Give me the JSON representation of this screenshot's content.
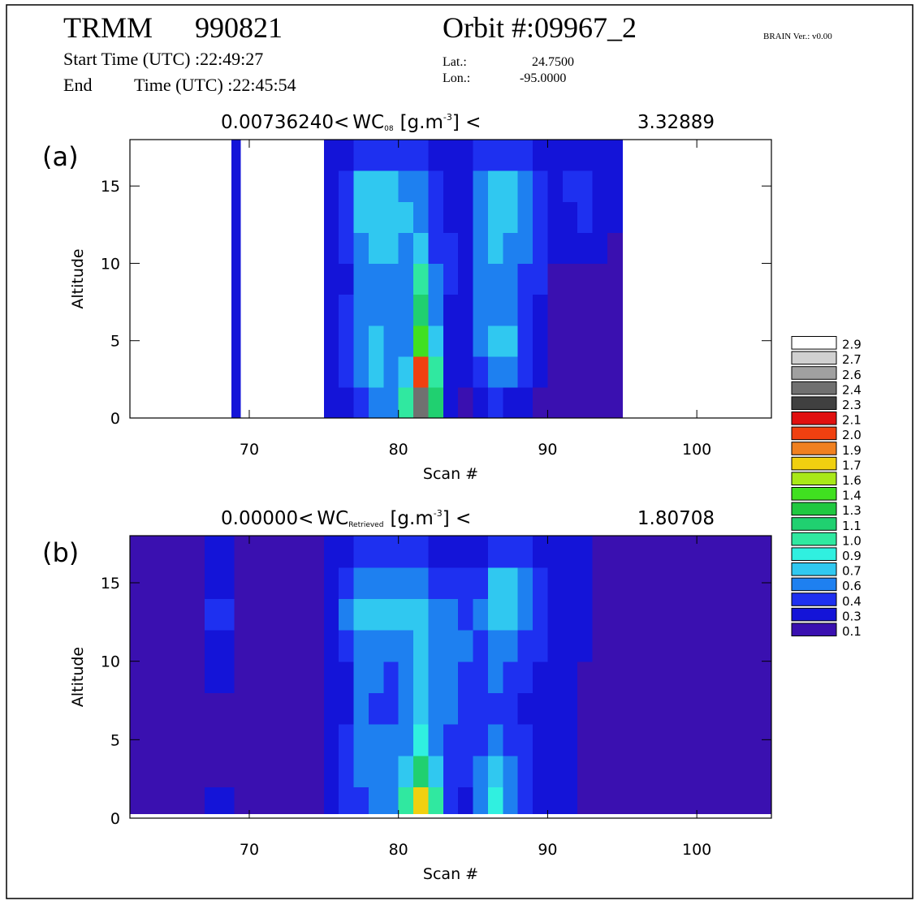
{
  "header": {
    "mission": "TRMM",
    "date": "990821",
    "orbit": "Orbit #:09967_2",
    "version": "BRAIN Ver.: v0.00",
    "start_time": "Start Time (UTC) :22:49:27",
    "end_label": "End",
    "end_time": "Time (UTC) :22:45:54",
    "lat_label": "Lat.:",
    "lat": "24.7500",
    "lon_label": "Lon.:",
    "lon": "-95.0000"
  },
  "colorbar": {
    "levels": [
      0.1,
      0.3,
      0.4,
      0.6,
      0.7,
      0.9,
      {
        "value": 1,
        "label": "1.0"
      },
      1.1,
      1.3,
      1.4,
      1.6,
      1.7,
      1.9,
      {
        "value": 2,
        "label": "2.0"
      },
      2.1,
      2.3,
      2.4,
      2.6,
      2.7,
      2.9
    ],
    "colors": [
      "#3a10b0",
      "#1414d8",
      "#1e30f0",
      "#1e80f0",
      "#30c8f0",
      "#30f0e0",
      "#30e8a0",
      "#20d070",
      "#20c840",
      "#40e020",
      "#a8e818",
      "#f0d010",
      "#f08020",
      "#f04010",
      "#e01010",
      "#404040",
      "#707070",
      "#a0a0a0",
      "#d0d0d0",
      "#ffffff"
    ]
  },
  "chart_data": [
    {
      "type": "contour",
      "panel_label": "(a)",
      "title": {
        "prefix": "0.00736240<",
        "var": "WC",
        "sub": "08",
        "unit": "[g.m",
        "sup": "-3",
        "close": "]  <",
        "max": "3.32889"
      },
      "xlabel": "Scan #",
      "ylabel": "Altitude",
      "xlim": [
        62,
        105
      ],
      "ylim": [
        0,
        18
      ],
      "xticks": [
        70,
        80,
        90,
        100
      ],
      "yticks": [
        0,
        5,
        10,
        15
      ],
      "x_bins": [
        68.8,
        69.4,
        75,
        76,
        77,
        78,
        79,
        80,
        81,
        82,
        83,
        84,
        85,
        86,
        87,
        88,
        89,
        90,
        91,
        92,
        93,
        94,
        95
      ],
      "y_bins": [
        0,
        2,
        4,
        6,
        8,
        10,
        12,
        14,
        16,
        18
      ],
      "z": [
        [
          0.3,
          0.3,
          0.3,
          0.3,
          0.3,
          0.3,
          0.3,
          0.3,
          0.3
        ],
        [
          null,
          null,
          null,
          null,
          null,
          null,
          null,
          null,
          null
        ],
        [
          0.3,
          0.3,
          0.3,
          0.3,
          0.3,
          0.3,
          0.3,
          0.3,
          0.3
        ],
        [
          0.3,
          0.4,
          0.4,
          0.4,
          0.3,
          0.4,
          0.4,
          0.4,
          0.3
        ],
        [
          0.4,
          0.6,
          0.6,
          0.6,
          0.6,
          0.6,
          0.7,
          0.7,
          0.4
        ],
        [
          0.6,
          0.7,
          0.7,
          0.6,
          0.6,
          0.7,
          0.8,
          0.8,
          0.4
        ],
        [
          0.6,
          0.6,
          0.6,
          0.6,
          0.6,
          0.7,
          0.8,
          0.7,
          0.4
        ],
        [
          1.0,
          0.7,
          0.6,
          0.6,
          0.6,
          0.6,
          0.7,
          0.6,
          0.4
        ],
        [
          2.5,
          2.0,
          1.5,
          1.1,
          1.0,
          0.7,
          0.6,
          0.6,
          0.4
        ],
        [
          1.2,
          1.0,
          0.7,
          0.6,
          0.6,
          0.4,
          0.4,
          0.4,
          0.3
        ],
        [
          0.3,
          0.3,
          0.3,
          0.3,
          0.4,
          0.4,
          0.3,
          0.3,
          0.3
        ],
        [
          0.1,
          0.3,
          0.3,
          0.3,
          0.3,
          0.3,
          0.3,
          0.3,
          0.3
        ],
        [
          0.3,
          0.4,
          0.6,
          0.6,
          0.6,
          0.6,
          0.6,
          0.6,
          0.4
        ],
        [
          0.4,
          0.6,
          0.7,
          0.6,
          0.6,
          0.7,
          0.7,
          0.8,
          0.4
        ],
        [
          0.3,
          0.6,
          0.7,
          0.6,
          0.6,
          0.6,
          0.7,
          0.7,
          0.4
        ],
        [
          0.3,
          0.4,
          0.4,
          0.4,
          0.4,
          0.6,
          0.6,
          0.6,
          0.4
        ],
        [
          0.1,
          0.3,
          0.3,
          0.3,
          0.4,
          0.4,
          0.4,
          0.4,
          0.3
        ],
        [
          0.1,
          0.1,
          0.1,
          0.1,
          0.1,
          0.3,
          0.3,
          0.3,
          0.3
        ],
        [
          0.1,
          0.1,
          0.1,
          0.1,
          0.1,
          0.3,
          0.3,
          0.4,
          0.3
        ],
        [
          0.1,
          0.1,
          0.1,
          0.1,
          0.1,
          0.3,
          0.4,
          0.4,
          0.3
        ],
        [
          0.1,
          0.1,
          0.1,
          0.1,
          0.1,
          0.3,
          0.3,
          0.3,
          0.3
        ],
        [
          0.1,
          0.1,
          0.1,
          0.1,
          0.1,
          0.1,
          0.3,
          0.3,
          0.3
        ]
      ]
    },
    {
      "type": "contour",
      "panel_label": "(b)",
      "title": {
        "prefix": "0.00000<",
        "var": "WC",
        "sub": "Retrieved",
        "unit": "[g.m",
        "sup": "-3",
        "close": "]  <",
        "max": "1.80708"
      },
      "xlabel": "Scan #",
      "ylabel": "Altitude",
      "xlim": [
        62,
        105
      ],
      "ylim": [
        0,
        18
      ],
      "xticks": [
        70,
        80,
        90,
        100
      ],
      "yticks": [
        0,
        5,
        10,
        15
      ],
      "x_bins": [
        62,
        65,
        67,
        69,
        72,
        75,
        76,
        77,
        78,
        79,
        80,
        81,
        82,
        83,
        84,
        85,
        86,
        87,
        88,
        89,
        90,
        91,
        92,
        93,
        94,
        95,
        105
      ],
      "y_bins": [
        0.3,
        2,
        4,
        6,
        8,
        10,
        12,
        14,
        16,
        18
      ],
      "z": [
        [
          0.1,
          0.1,
          0.1,
          0.1,
          0.1,
          0.1,
          0.1,
          0.1,
          0.1
        ],
        [
          0.1,
          0.1,
          0.1,
          0.1,
          0.1,
          0.1,
          0.1,
          0.1,
          0.1
        ],
        [
          0.3,
          0.1,
          0.1,
          0.1,
          0.3,
          0.3,
          0.4,
          0.3,
          0.3
        ],
        [
          0.1,
          0.1,
          0.1,
          0.1,
          0.1,
          0.1,
          0.1,
          0.1,
          0.1
        ],
        [
          0.1,
          0.1,
          0.1,
          0.1,
          0.1,
          0.1,
          0.1,
          0.1,
          0.1
        ],
        [
          0.3,
          0.3,
          0.3,
          0.3,
          0.3,
          0.3,
          0.3,
          0.3,
          0.3
        ],
        [
          0.4,
          0.4,
          0.4,
          0.3,
          0.3,
          0.4,
          0.6,
          0.4,
          0.3
        ],
        [
          0.4,
          0.6,
          0.6,
          0.6,
          0.6,
          0.6,
          0.7,
          0.6,
          0.4
        ],
        [
          0.6,
          0.6,
          0.6,
          0.4,
          0.6,
          0.6,
          0.7,
          0.6,
          0.4
        ],
        [
          0.6,
          0.6,
          0.6,
          0.4,
          0.4,
          0.6,
          0.7,
          0.6,
          0.4
        ],
        [
          1.0,
          0.7,
          0.6,
          0.6,
          0.6,
          0.6,
          0.7,
          0.6,
          0.4
        ],
        [
          1.7,
          1.1,
          0.9,
          0.7,
          0.7,
          0.7,
          0.7,
          0.6,
          0.4
        ],
        [
          1.0,
          0.7,
          0.6,
          0.6,
          0.6,
          0.6,
          0.6,
          0.4,
          0.3
        ],
        [
          0.4,
          0.4,
          0.4,
          0.6,
          0.6,
          0.6,
          0.6,
          0.4,
          0.3
        ],
        [
          0.3,
          0.4,
          0.4,
          0.4,
          0.4,
          0.6,
          0.4,
          0.4,
          0.3
        ],
        [
          0.6,
          0.6,
          0.4,
          0.4,
          0.4,
          0.4,
          0.6,
          0.4,
          0.3
        ],
        [
          0.9,
          0.7,
          0.6,
          0.4,
          0.6,
          0.6,
          0.7,
          0.7,
          0.4
        ],
        [
          0.6,
          0.6,
          0.4,
          0.4,
          0.4,
          0.6,
          0.7,
          0.7,
          0.4
        ],
        [
          0.4,
          0.4,
          0.4,
          0.3,
          0.4,
          0.4,
          0.6,
          0.6,
          0.4
        ],
        [
          0.3,
          0.3,
          0.3,
          0.3,
          0.3,
          0.4,
          0.4,
          0.4,
          0.3
        ],
        [
          0.3,
          0.3,
          0.3,
          0.3,
          0.3,
          0.3,
          0.3,
          0.3,
          0.3
        ],
        [
          0.3,
          0.3,
          0.3,
          0.3,
          0.3,
          0.3,
          0.3,
          0.3,
          0.3
        ],
        [
          0.1,
          0.1,
          0.1,
          0.1,
          0.1,
          0.3,
          0.3,
          0.3,
          0.3
        ],
        [
          0.1,
          0.1,
          0.1,
          0.1,
          0.1,
          0.1,
          0.1,
          0.1,
          0.1
        ],
        [
          0.1,
          0.1,
          0.1,
          0.1,
          0.1,
          0.1,
          0.1,
          0.1,
          0.1
        ],
        [
          0.1,
          0.1,
          0.1,
          0.1,
          0.1,
          0.1,
          0.1,
          0.1,
          0.1
        ]
      ]
    }
  ]
}
